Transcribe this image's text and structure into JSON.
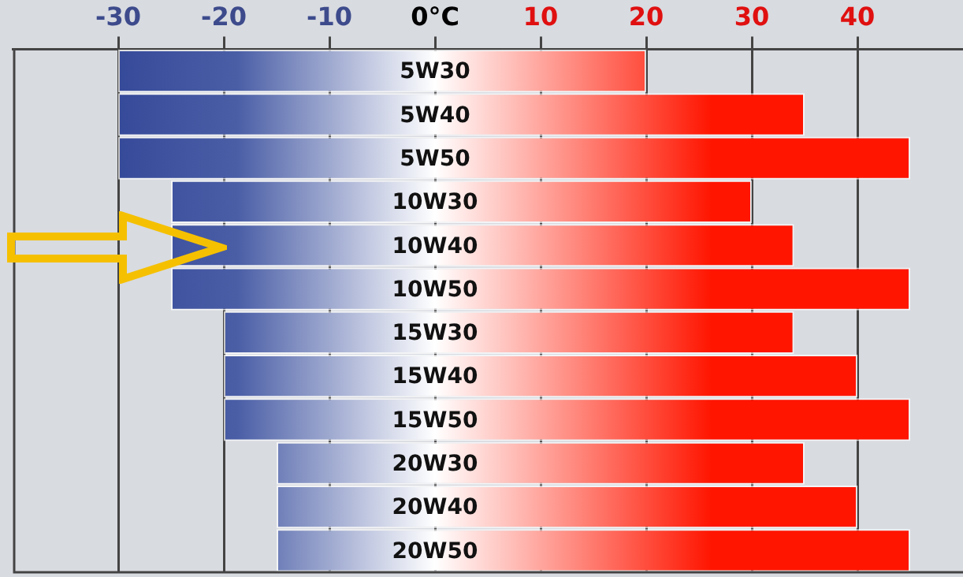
{
  "chart_data": {
    "type": "bar",
    "orientation": "horizontal",
    "categories": [
      "5W30",
      "5W40",
      "5W50",
      "10W30",
      "10W40",
      "10W50",
      "15W30",
      "15W40",
      "15W50",
      "20W30",
      "20W40",
      "20W50"
    ],
    "base": [
      -30,
      -30,
      -30,
      -25,
      -25,
      -25,
      -20,
      -20,
      -20,
      -15,
      -15,
      -15
    ],
    "values": [
      50,
      65,
      75,
      55,
      59,
      70,
      54,
      60,
      65,
      50,
      55,
      60
    ],
    "color": "#ff1500",
    "xlim": [
      -40,
      50
    ],
    "xticks": [
      -30,
      -20,
      -10,
      {
        "value": 0,
        "label": "0°C"
      },
      10,
      20,
      30,
      40
    ],
    "grid": "x",
    "legend": false
  }
}
